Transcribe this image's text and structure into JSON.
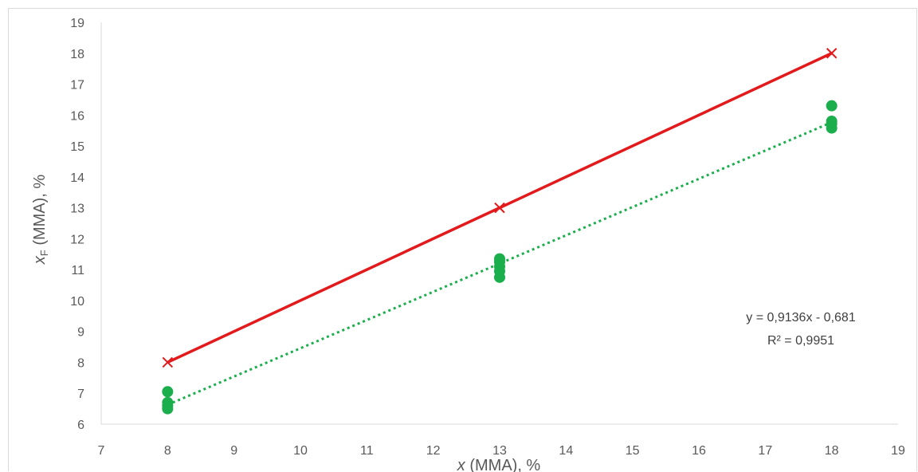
{
  "chart_data": {
    "type": "scatter",
    "xlabel": {
      "var": "x",
      "rest": " (MMA), %"
    },
    "ylabel": {
      "var": "x",
      "sub": "F",
      "rest": " (MMA), %"
    },
    "xlim": [
      7,
      19
    ],
    "ylim": [
      6,
      19
    ],
    "xticks": [
      "7",
      "8",
      "9",
      "10",
      "11",
      "12",
      "13",
      "14",
      "15",
      "16",
      "17",
      "18",
      "19"
    ],
    "yticks": [
      "6",
      "7",
      "8",
      "9",
      "10",
      "11",
      "12",
      "13",
      "14",
      "15",
      "16",
      "17",
      "18",
      "19"
    ],
    "grid": false,
    "series": [
      {
        "kind": "reference",
        "color": "#e31a1c",
        "marker": "x",
        "line": "solid",
        "points": [
          [
            8,
            8
          ],
          [
            13,
            13
          ],
          [
            18,
            18
          ]
        ]
      },
      {
        "kind": "measured",
        "color": "#1aae4c",
        "marker": "circle",
        "points": [
          [
            8,
            7.05
          ],
          [
            8,
            6.7
          ],
          [
            8,
            6.6
          ],
          [
            8,
            6.5
          ],
          [
            13,
            11.35
          ],
          [
            13,
            11.25
          ],
          [
            13,
            11.1
          ],
          [
            13,
            10.95
          ],
          [
            13,
            10.75
          ],
          [
            18,
            16.3
          ],
          [
            18,
            15.8
          ],
          [
            18,
            15.72
          ],
          [
            18,
            15.58
          ]
        ],
        "trendline": {
          "slope": 0.9136,
          "intercept": -0.681,
          "x_range": [
            8,
            18
          ],
          "line": "dotted",
          "equation": "y = 0,9136x - 0,681",
          "r2": "R² = 0,9951"
        }
      }
    ]
  }
}
